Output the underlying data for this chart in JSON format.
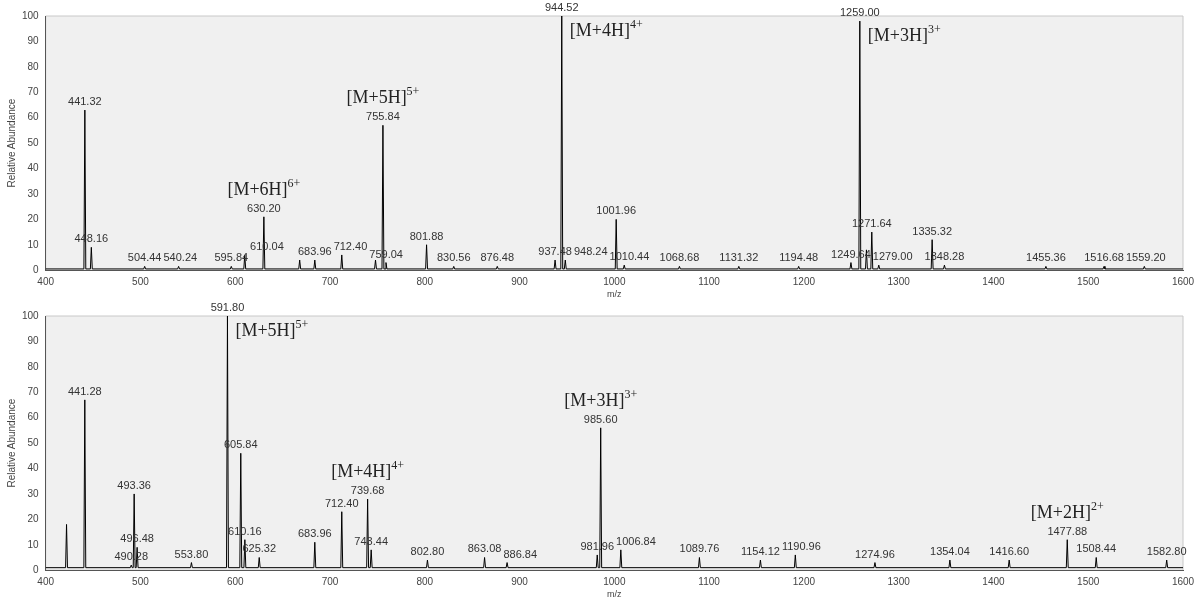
{
  "chart_data": [
    {
      "type": "line",
      "xlabel": "m/z",
      "ylabel": "Relative Abundance",
      "xlim": [
        400,
        1600
      ],
      "xticks": [
        400,
        500,
        600,
        700,
        800,
        900,
        1000,
        1100,
        1200,
        1300,
        1400,
        1500,
        1600
      ],
      "ylim": [
        0,
        100
      ],
      "yticks": [
        0,
        10,
        20,
        30,
        40,
        50,
        60,
        70,
        80,
        90,
        100
      ],
      "grid": false,
      "legend": false,
      "marker": "none",
      "line_style": "solid",
      "series": [
        {
          "color": "#000000",
          "x": [
            400,
            440.32,
            441.32,
            442.32,
            447.16,
            448.16,
            449.16,
            503.44,
            504.44,
            505.44,
            539.24,
            540.24,
            541.24,
            594.84,
            595.84,
            596.84,
            609.04,
            610.04,
            611.04,
            629.2,
            630.2,
            631.2,
            667,
            668,
            669,
            682.96,
            683.96,
            684.96,
            711.4,
            712.4,
            713.4,
            747,
            748,
            749,
            754.84,
            755.84,
            756.84,
            758.04,
            759.04,
            760.04,
            800.88,
            801.88,
            802.88,
            829.56,
            830.56,
            831.56,
            875.48,
            876.48,
            877.48,
            936.48,
            937.48,
            938.48,
            943.52,
            944.52,
            945.52,
            947.24,
            948.24,
            949.24,
            1000.96,
            1001.96,
            1002.96,
            1009.44,
            1010.44,
            1011.44,
            1067.68,
            1068.68,
            1069.68,
            1130.32,
            1131.32,
            1132.32,
            1193.48,
            1194.48,
            1195.48,
            1248.64,
            1249.64,
            1250.64,
            1258,
            1259,
            1260,
            1265,
            1266,
            1267,
            1270.64,
            1271.64,
            1272.64,
            1278,
            1279,
            1280,
            1334.32,
            1335.32,
            1336.32,
            1347.28,
            1348.28,
            1349.28,
            1454.36,
            1455.36,
            1456.36,
            1515.68,
            1516.68,
            1517.68,
            1558.2,
            1559.2,
            1560.2,
            1600
          ],
          "values": [
            0.5,
            0.5,
            63,
            0.5,
            0.5,
            9,
            0.5,
            0.5,
            1.5,
            0.5,
            0.5,
            1.5,
            0.5,
            0.5,
            1.5,
            0.5,
            0.5,
            6,
            0.5,
            0.5,
            21,
            0.5,
            0.5,
            4,
            0.5,
            0.5,
            4,
            0.5,
            0.5,
            6,
            0.5,
            0.5,
            4,
            0.5,
            0.5,
            57,
            0.5,
            0.5,
            3,
            0.5,
            0.5,
            10,
            0.5,
            0.5,
            1.5,
            0.5,
            0.5,
            1.5,
            0.5,
            0.5,
            4,
            0.5,
            0.5,
            100,
            0.5,
            0.5,
            4,
            0.5,
            0.5,
            20,
            0.5,
            0.5,
            2,
            0.5,
            0.5,
            1.5,
            0.5,
            0.5,
            1.5,
            0.5,
            0.5,
            1.5,
            0.5,
            0.5,
            3,
            0.5,
            0.5,
            98,
            0.5,
            0.5,
            8,
            0.5,
            0.5,
            15,
            0.5,
            0.5,
            2,
            0.5,
            0.5,
            12,
            0.5,
            0.5,
            2,
            0.5,
            0.5,
            1.5,
            0.5,
            0.5,
            1.5,
            0.5,
            0.5,
            1.5,
            0.5,
            0.5
          ]
        }
      ],
      "annotations": [
        {
          "text": "441.32",
          "x": 441.32,
          "y": 63
        },
        {
          "text": "448.16",
          "x": 448.16,
          "y": 9
        },
        {
          "text": "504.44",
          "x": 504.44,
          "y": 1.5
        },
        {
          "text": "540.24",
          "x": 540.24,
          "y": 1.5
        },
        {
          "text": "595.84",
          "x": 595.84,
          "y": 1.5
        },
        {
          "text": "610.04",
          "x": 610.04,
          "y": 6
        },
        {
          "text": "630.20",
          "x": 630.2,
          "y": 21
        },
        {
          "text": "683.96",
          "x": 683.96,
          "y": 4
        },
        {
          "text": "712.40",
          "x": 712.4,
          "y": 6
        },
        {
          "text": "755.84",
          "x": 755.84,
          "y": 57
        },
        {
          "text": "759.04",
          "x": 759.04,
          "y": 3
        },
        {
          "text": "801.88",
          "x": 801.88,
          "y": 10
        },
        {
          "text": "830.56",
          "x": 830.56,
          "y": 1.5
        },
        {
          "text": "876.48",
          "x": 876.48,
          "y": 1.5
        },
        {
          "text": "937.48",
          "x": 937.48,
          "y": 4
        },
        {
          "text": "944.52",
          "x": 944.52,
          "y": 100
        },
        {
          "text": "948.24",
          "x": 948.24,
          "y": 4
        },
        {
          "text": "1001.96",
          "x": 1001.96,
          "y": 20
        },
        {
          "text": "1010.44",
          "x": 1010.44,
          "y": 2
        },
        {
          "text": "1068.68",
          "x": 1068.68,
          "y": 1.5
        },
        {
          "text": "1131.32",
          "x": 1131.32,
          "y": 1.5
        },
        {
          "text": "1194.48",
          "x": 1194.48,
          "y": 1.5
        },
        {
          "text": "1249.64",
          "x": 1249.64,
          "y": 3
        },
        {
          "text": "1259.00",
          "x": 1259,
          "y": 98
        },
        {
          "text": "1271.64",
          "x": 1271.64,
          "y": 15
        },
        {
          "text": "1279.00",
          "x": 1279,
          "y": 2
        },
        {
          "text": "1335.32",
          "x": 1335.32,
          "y": 12
        },
        {
          "text": "1348.28",
          "x": 1348.28,
          "y": 2
        },
        {
          "text": "1455.36",
          "x": 1455.36,
          "y": 1.5
        },
        {
          "text": "1516.68",
          "x": 1516.68,
          "y": 1.5
        },
        {
          "text": "1559.20",
          "x": 1559.2,
          "y": 1.5
        },
        {
          "text": "[M+6H]$^{6+}$",
          "x": 630.2,
          "y": 21
        },
        {
          "text": "[M+5H]$^{5+}$",
          "x": 755.84,
          "y": 57
        },
        {
          "text": "[M+4H]$^{4+}$",
          "x": 944.52,
          "y": 100
        },
        {
          "text": "[M+3H]$^{3+}$",
          "x": 1259,
          "y": 98
        }
      ]
    },
    {
      "type": "line",
      "xlabel": "m/z",
      "ylabel": "Relative Abundance",
      "xlim": [
        400,
        1600
      ],
      "xticks": [
        400,
        500,
        600,
        700,
        800,
        900,
        1000,
        1100,
        1200,
        1300,
        1400,
        1500,
        1600
      ],
      "ylim": [
        0,
        100
      ],
      "yticks": [
        0,
        10,
        20,
        30,
        40,
        50,
        60,
        70,
        80,
        90,
        100
      ],
      "grid": false,
      "legend": false,
      "marker": "none",
      "line_style": "solid",
      "series": [
        {
          "color": "#000000",
          "x": [
            400,
            421,
            422,
            423,
            440.28,
            441.28,
            442.28,
            489.28,
            490.28,
            491.28,
            492.36,
            493.36,
            494.36,
            495.48,
            496.48,
            497.48,
            552.8,
            553.8,
            554.8,
            590.8,
            591.8,
            592.8,
            604.84,
            605.84,
            606.84,
            609.16,
            610.16,
            611.16,
            624.32,
            625.32,
            626.32,
            682.96,
            683.96,
            684.96,
            711.4,
            712.4,
            713.4,
            738.68,
            739.68,
            740.68,
            742.44,
            743.44,
            744.44,
            801.8,
            802.8,
            803.8,
            862.08,
            863.08,
            864.08,
            885.84,
            886.84,
            887.84,
            980.96,
            981.96,
            982.96,
            984.6,
            985.6,
            986.6,
            1005.84,
            1006.84,
            1007.84,
            1088.76,
            1089.76,
            1090.76,
            1153.12,
            1154.12,
            1155.12,
            1189.96,
            1190.96,
            1191.96,
            1273.96,
            1274.96,
            1275.96,
            1353.04,
            1354.04,
            1355.04,
            1415.6,
            1416.6,
            1417.6,
            1476.88,
            1477.88,
            1478.88,
            1507.44,
            1508.44,
            1509.44,
            1581.8,
            1582.8,
            1583.8,
            1600
          ],
          "values": [
            1,
            1,
            18,
            1,
            1,
            67,
            1,
            1,
            2,
            1,
            1,
            30,
            1,
            1,
            9,
            1,
            1,
            3,
            1,
            1,
            100,
            1,
            1,
            46,
            1,
            1,
            12,
            1,
            1,
            5,
            1,
            1,
            11,
            1,
            1,
            23,
            1,
            1,
            28,
            1,
            1,
            8,
            1,
            1,
            4,
            1,
            1,
            5,
            1,
            1,
            3,
            1,
            1,
            6,
            1,
            1,
            56,
            1,
            1,
            8,
            1,
            1,
            5,
            1,
            1,
            4,
            1,
            1,
            6,
            1,
            1,
            3,
            1,
            1,
            4,
            1,
            1,
            4,
            1,
            1,
            12,
            1,
            1,
            5,
            1,
            1,
            4,
            1,
            1
          ]
        }
      ],
      "annotations": [
        {
          "text": "441.28",
          "x": 441.28,
          "y": 67
        },
        {
          "text": "490.28",
          "x": 490.28,
          "y": 2
        },
        {
          "text": "493.36",
          "x": 493.36,
          "y": 30
        },
        {
          "text": "496.48",
          "x": 496.48,
          "y": 9
        },
        {
          "text": "553.80",
          "x": 553.8,
          "y": 3
        },
        {
          "text": "591.80",
          "x": 591.8,
          "y": 100
        },
        {
          "text": "605.84",
          "x": 605.84,
          "y": 46
        },
        {
          "text": "610.16",
          "x": 610.16,
          "y": 12
        },
        {
          "text": "625.32",
          "x": 625.32,
          "y": 5
        },
        {
          "text": "683.96",
          "x": 683.96,
          "y": 11
        },
        {
          "text": "712.40",
          "x": 712.4,
          "y": 23
        },
        {
          "text": "739.68",
          "x": 739.68,
          "y": 28
        },
        {
          "text": "743.44",
          "x": 743.44,
          "y": 8
        },
        {
          "text": "802.80",
          "x": 802.8,
          "y": 4
        },
        {
          "text": "863.08",
          "x": 863.08,
          "y": 5
        },
        {
          "text": "886.84",
          "x": 886.84,
          "y": 3
        },
        {
          "text": "981.96",
          "x": 981.96,
          "y": 6
        },
        {
          "text": "985.60",
          "x": 985.6,
          "y": 56
        },
        {
          "text": "1006.84",
          "x": 1006.84,
          "y": 8
        },
        {
          "text": "1089.76",
          "x": 1089.76,
          "y": 5
        },
        {
          "text": "1154.12",
          "x": 1154.12,
          "y": 4
        },
        {
          "text": "1190.96",
          "x": 1190.96,
          "y": 6
        },
        {
          "text": "1274.96",
          "x": 1274.96,
          "y": 3
        },
        {
          "text": "1354.04",
          "x": 1354.04,
          "y": 4
        },
        {
          "text": "1416.60",
          "x": 1416.6,
          "y": 4
        },
        {
          "text": "1477.88",
          "x": 1477.88,
          "y": 12
        },
        {
          "text": "1508.44",
          "x": 1508.44,
          "y": 5
        },
        {
          "text": "1582.80",
          "x": 1582.8,
          "y": 4
        },
        {
          "text": "[M+5H]$^{5+}$",
          "x": 591.8,
          "y": 100
        },
        {
          "text": "[M+4H]$^{4+}$",
          "x": 739.68,
          "y": 28
        },
        {
          "text": "[M+3H]$^{3+}$",
          "x": 985.6,
          "y": 56
        },
        {
          "text": "[M+2H]$^{2+}$",
          "x": 1477.88,
          "y": 12
        }
      ]
    }
  ]
}
